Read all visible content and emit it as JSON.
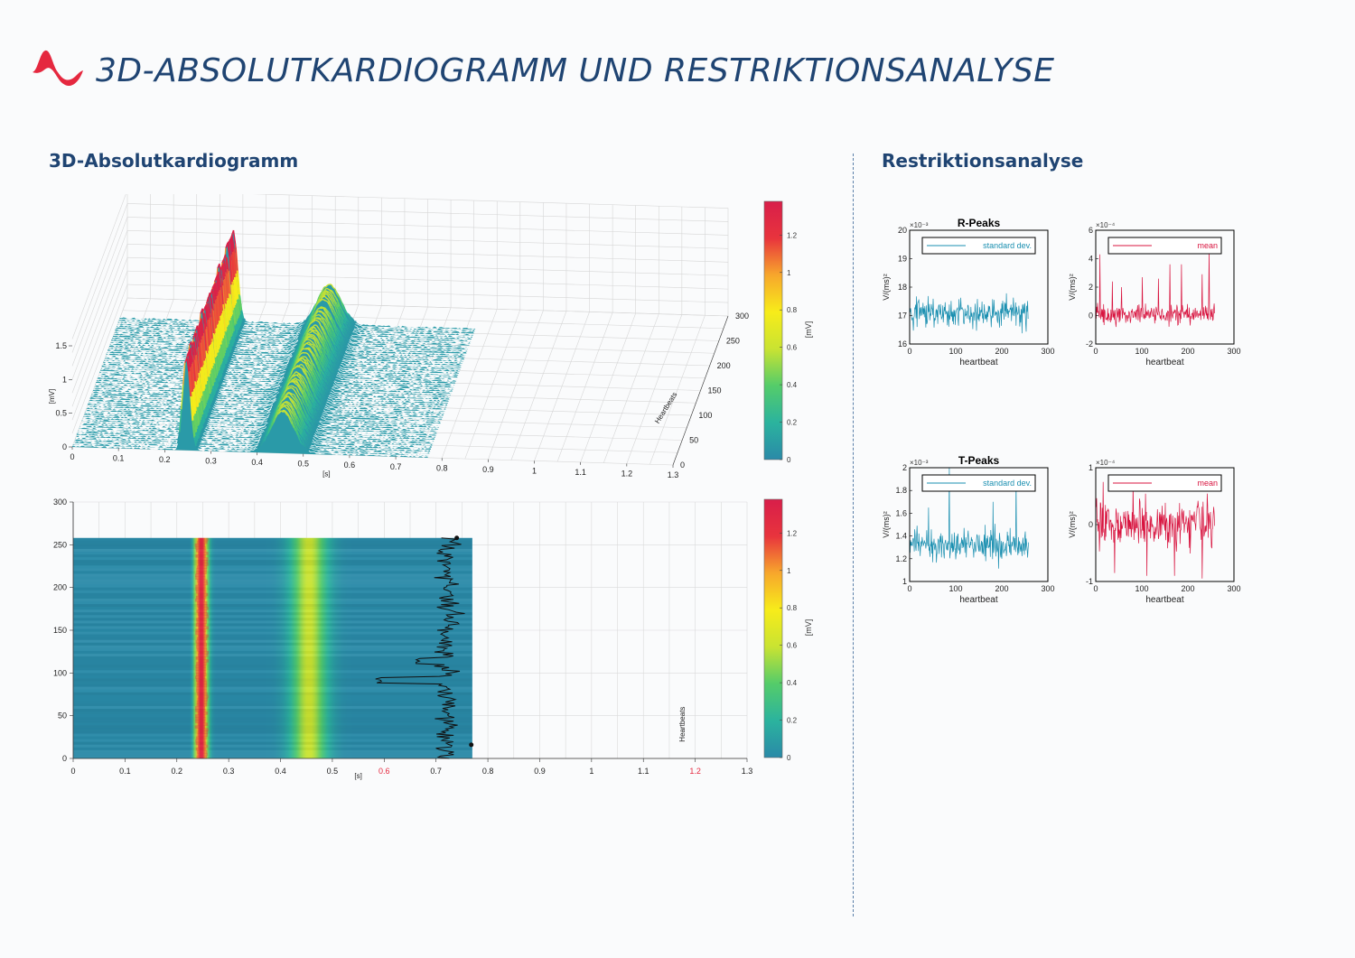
{
  "header": {
    "title": "3D-ABSOLUTKARDIOGRAMM UND RESTRIKTIONSANALYSE"
  },
  "sections": {
    "left_title": "3D-Absolutkardiogramm",
    "right_title": "Restriktionsanalyse"
  },
  "colors": {
    "brand_red": "#e5283f",
    "title_blue": "#1f4472",
    "std_color": "#1a8fb0",
    "mean_color": "#d8143f",
    "surface_base": "#2a9aa8"
  },
  "colorbar": {
    "ticks": [
      "0",
      "0.2",
      "0.4",
      "0.6",
      "0.8",
      "1",
      "1.2"
    ],
    "label": "[mV]",
    "stops": [
      "#2a8aa8",
      "#2bb39e",
      "#54cc6a",
      "#c9e332",
      "#f7ec1a",
      "#f7a72c",
      "#e8343d",
      "#d81e4a"
    ]
  },
  "chart_data": [
    {
      "type": "area",
      "name": "3d-surface",
      "x": [
        0,
        0.2,
        0.23,
        0.245,
        0.26,
        0.29,
        0.35,
        0.42,
        0.46,
        0.5,
        0.55,
        0.77
      ],
      "y": [
        0,
        0,
        0.3,
        1.35,
        0.4,
        0.02,
        0,
        0.45,
        0.62,
        0.4,
        0.05,
        0
      ],
      "xlabel": "[s]",
      "ylabel": "[mV]",
      "zlabel": "Heartbeats",
      "x_ticks": [
        "0",
        "0.1",
        "0.2",
        "0.3",
        "0.4",
        "0.5",
        "0.6",
        "0.7",
        "0.8",
        "0.9",
        "1",
        "1.1",
        "1.2",
        "1.3"
      ],
      "y_ticks": [
        "0",
        "0.5",
        "1",
        "1.5"
      ],
      "z_ticks": [
        "0",
        "50",
        "100",
        "150",
        "200",
        "250",
        "300"
      ],
      "xlim": [
        0,
        1.3
      ],
      "ylim": [
        0,
        1.5
      ],
      "zlim": [
        0,
        300
      ]
    },
    {
      "type": "heatmap",
      "name": "2d-heatmap",
      "x_ticks": [
        "0",
        "0.1",
        "0.2",
        "0.3",
        "0.4",
        "0.5",
        "0.6",
        "0.7",
        "0.8",
        "0.9",
        "1",
        "1.1",
        "1.2",
        "1.3"
      ],
      "highlight_ticks": [
        "0.6",
        "1.2"
      ],
      "highlight_color": "#e5283f",
      "y_ticks": [
        "0",
        "50",
        "100",
        "150",
        "200",
        "250",
        "300"
      ],
      "xlabel": "[s]",
      "ylabel_right": "Heartbeats",
      "xlim": [
        0,
        1.3
      ],
      "ylim": [
        0,
        300
      ],
      "data_extent": {
        "x": [
          0,
          0.77
        ],
        "heartbeats": [
          0,
          258
        ]
      },
      "r_peak_band": [
        0.235,
        0.26
      ],
      "t_wave_band": [
        0.42,
        0.5
      ]
    },
    {
      "type": "line",
      "name": "r-peaks-std",
      "title": "R-Peaks",
      "legend": "standard dev.",
      "exponent": "×10⁻³",
      "xlabel": "heartbeat",
      "ylabel": "V/(ms)²",
      "x_ticks": [
        "0",
        "100",
        "200",
        "300"
      ],
      "y_ticks": [
        "16",
        "17",
        "18",
        "19",
        "20"
      ],
      "xlim": [
        0,
        300
      ],
      "ylim": [
        16,
        20
      ],
      "count": 258,
      "mean": 17.1,
      "spread": 0.35,
      "spikes": []
    },
    {
      "type": "line",
      "name": "r-peaks-mean",
      "legend": "mean",
      "exponent": "×10⁻⁴",
      "xlabel": "heartbeat",
      "ylabel": "V/(ms)²",
      "x_ticks": [
        "0",
        "100",
        "200",
        "300"
      ],
      "y_ticks": [
        "-2",
        "0",
        "2",
        "4",
        "6"
      ],
      "xlim": [
        0,
        300
      ],
      "ylim": [
        -2,
        6
      ],
      "count": 258,
      "mean": 0.1,
      "spread": 0.45,
      "spikes": [
        [
          8,
          4.3
        ],
        [
          35,
          2.4
        ],
        [
          55,
          2.0
        ],
        [
          100,
          2.7
        ],
        [
          135,
          2.6
        ],
        [
          160,
          3.6
        ],
        [
          185,
          3.6
        ],
        [
          230,
          2.9
        ],
        [
          245,
          4.6
        ]
      ]
    },
    {
      "type": "line",
      "name": "t-peaks-std",
      "title": "T-Peaks",
      "legend": "standard dev.",
      "exponent": "×10⁻³",
      "xlabel": "heartbeat",
      "ylabel": "V/(ms)²",
      "x_ticks": [
        "0",
        "100",
        "200",
        "300"
      ],
      "y_ticks": [
        "1",
        "1.2",
        "1.4",
        "1.6",
        "1.8",
        "2"
      ],
      "xlim": [
        0,
        300
      ],
      "ylim": [
        1,
        2
      ],
      "count": 258,
      "mean": 1.32,
      "spread": 0.09,
      "spikes": [
        [
          85,
          2.0
        ],
        [
          180,
          1.7
        ],
        [
          230,
          1.9
        ],
        [
          40,
          1.65
        ]
      ]
    },
    {
      "type": "line",
      "name": "t-peaks-mean",
      "legend": "mean",
      "exponent": "×10⁻⁴",
      "xlabel": "heartbeat",
      "ylabel": "V/(ms)²",
      "x_ticks": [
        "0",
        "100",
        "200",
        "300"
      ],
      "y_ticks": [
        "-1",
        "0",
        "1"
      ],
      "xlim": [
        0,
        300
      ],
      "ylim": [
        -1,
        1
      ],
      "count": 258,
      "mean": 0.0,
      "spread": 0.28,
      "spikes": [
        [
          15,
          0.75
        ],
        [
          40,
          -0.85
        ],
        [
          110,
          -0.9
        ],
        [
          170,
          -0.9
        ],
        [
          230,
          -0.95
        ],
        [
          80,
          0.7
        ]
      ]
    }
  ]
}
